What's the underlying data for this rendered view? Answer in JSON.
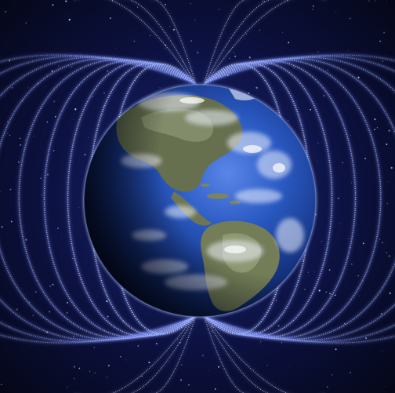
{
  "image": {
    "subject": "earth-magnetic-field",
    "colors": {
      "space_background": "#070a22",
      "space_glow": "#1d2a7a",
      "field_line": "#c9d6ff",
      "field_glow": "#6e86ff",
      "ocean": "#1f4fb5",
      "ocean_dark": "#0b1b4f",
      "land": "#5f6a52",
      "land_light": "#9aa37f",
      "cloud": "#eef3ff",
      "night_side": "#020410"
    }
  }
}
